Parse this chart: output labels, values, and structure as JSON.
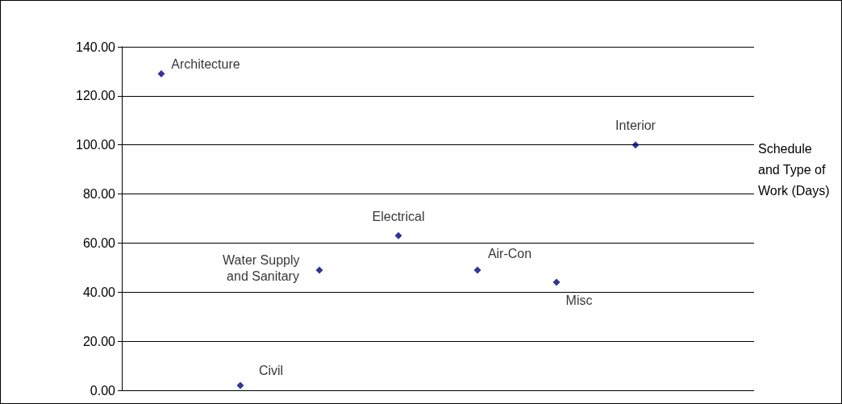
{
  "chart_data": {
    "type": "scatter",
    "ylabel": "Schedule and Type of Work (Days)",
    "categories": [
      null,
      null,
      null,
      null,
      null,
      null,
      null,
      null
    ],
    "series": [
      {
        "name": "Architecture",
        "color": "#000080",
        "values": [
          129,
          null,
          null,
          null,
          null,
          null,
          null,
          null
        ]
      },
      {
        "name": "Civil",
        "color": "#000080",
        "values": [
          null,
          2,
          null,
          null,
          null,
          null,
          null,
          null
        ]
      },
      {
        "name": "Water Supply and Sanitary",
        "color": "#000080",
        "values": [
          null,
          null,
          49,
          null,
          null,
          null,
          null,
          null
        ]
      },
      {
        "name": "Electrical",
        "color": "#000080",
        "values": [
          null,
          null,
          null,
          63,
          null,
          null,
          null,
          null
        ]
      },
      {
        "name": "Air-Con",
        "color": "#000080",
        "values": [
          null,
          null,
          null,
          null,
          49,
          null,
          null,
          null
        ]
      },
      {
        "name": "Misc",
        "color": "#000080",
        "values": [
          null,
          null,
          null,
          null,
          null,
          44,
          null,
          null
        ]
      },
      {
        "name": "Interior",
        "color": "#000080",
        "values": [
          null,
          null,
          null,
          null,
          null,
          null,
          100,
          null
        ]
      }
    ],
    "ylim": [
      0,
      140
    ],
    "yticks": [
      {
        "value": 0,
        "label": "0.00"
      },
      {
        "value": 20,
        "label": "20.00"
      },
      {
        "value": 40,
        "label": "40.00"
      },
      {
        "value": 60,
        "label": "60.00"
      },
      {
        "value": 80,
        "label": "80.00"
      },
      {
        "value": 100,
        "label": "100.00"
      },
      {
        "value": 120,
        "label": "120.00"
      },
      {
        "value": 140,
        "label": "140.00"
      }
    ],
    "grid": "y",
    "marker": "diamond",
    "legend": false
  }
}
